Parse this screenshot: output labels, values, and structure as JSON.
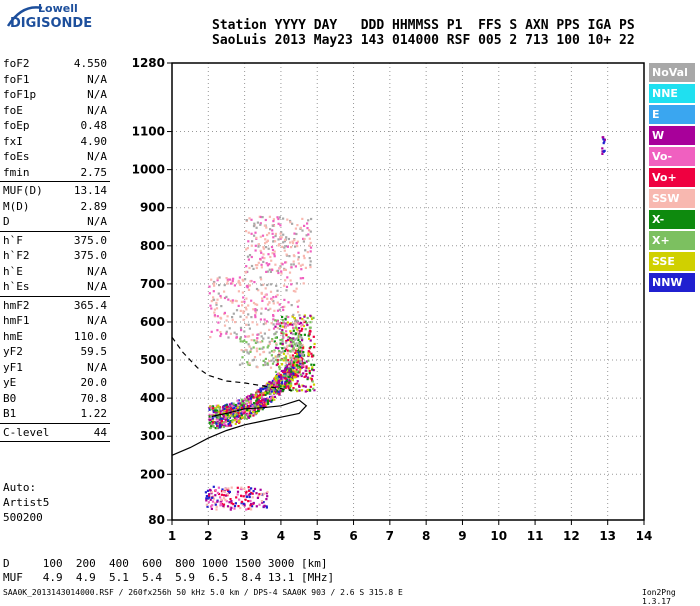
{
  "logo": {
    "line1": "Lowell",
    "line2": "DIGISONDE"
  },
  "header": {
    "line1": "Station YYYY DAY   DDD HHMMSS P1  FFS S AXN PPS IGA PS",
    "line2": "SaoLuis 2013 May23 143 014000 RSF 005 2 713 100 10+ 22"
  },
  "params": [
    {
      "k": "foF2",
      "v": "4.550"
    },
    {
      "k": "foF1",
      "v": "N/A"
    },
    {
      "k": "foF1p",
      "v": "N/A"
    },
    {
      "k": "foE",
      "v": "N/A"
    },
    {
      "k": "foEp",
      "v": "0.48"
    },
    {
      "k": "fxI",
      "v": "4.90"
    },
    {
      "k": "foEs",
      "v": "N/A"
    },
    {
      "k": "fmin",
      "v": "2.75"
    },
    {
      "sep": true
    },
    {
      "k": "MUF(D)",
      "v": "13.14"
    },
    {
      "k": "M(D)",
      "v": "2.89"
    },
    {
      "k": "D",
      "v": "N/A"
    },
    {
      "sep": true
    },
    {
      "k": "h`F",
      "v": "375.0"
    },
    {
      "k": "h`F2",
      "v": "375.0"
    },
    {
      "k": "h`E",
      "v": "N/A"
    },
    {
      "k": "h`Es",
      "v": "N/A"
    },
    {
      "sep": true
    },
    {
      "k": "hmF2",
      "v": "365.4"
    },
    {
      "k": "hmF1",
      "v": "N/A"
    },
    {
      "k": "hmE",
      "v": "110.0"
    },
    {
      "k": "yF2",
      "v": "59.5"
    },
    {
      "k": "yF1",
      "v": "N/A"
    },
    {
      "k": "yE",
      "v": "20.0"
    },
    {
      "k": "B0",
      "v": "70.8"
    },
    {
      "k": "B1",
      "v": "1.22"
    },
    {
      "sep": true
    },
    {
      "k": "C-level",
      "v": "44"
    },
    {
      "sep": true
    }
  ],
  "auto": {
    "l1": "Auto:",
    "l2": "Artist5",
    "l3": "500200"
  },
  "legend": [
    {
      "name": "NoVal",
      "color": "#a8a8a8"
    },
    {
      "name": "NNE",
      "color": "#1fe0f0"
    },
    {
      "name": "E",
      "color": "#3aa6f0"
    },
    {
      "name": "W",
      "color": "#a8009a"
    },
    {
      "name": "Vo-",
      "color": "#f060c0"
    },
    {
      "name": "Vo+",
      "color": "#ef0040"
    },
    {
      "name": "SSW",
      "color": "#f8b8b0"
    },
    {
      "name": "X-",
      "color": "#0e8a0e"
    },
    {
      "name": "X+",
      "color": "#7cc060"
    },
    {
      "name": "SSE",
      "color": "#d0d000"
    },
    {
      "name": "NNW",
      "color": "#2020d0"
    }
  ],
  "muf": {
    "line1": "D     100  200  400  600  800 1000 1500 3000 [km]",
    "line2": "MUF   4.9  4.9  5.1  5.4  5.9  6.5  8.4 13.1 [MHz]"
  },
  "footer": "SAA0K_2013143014000.RSF / 260fx256h 50 kHz 5.0 km / DPS-4 SAA0K 903 / 2.6 S 315.8 E",
  "version": "Ion2Png 1.3.17",
  "chart_data": {
    "type": "scatter",
    "xlim": [
      1,
      14
    ],
    "ylim": [
      80,
      1280
    ],
    "xticks": [
      1,
      2,
      3,
      4,
      5,
      6,
      7,
      8,
      9,
      10,
      11,
      12,
      13,
      14
    ],
    "yticks": [
      80,
      200,
      300,
      400,
      500,
      600,
      700,
      800,
      900,
      1000,
      1100,
      1280
    ],
    "seed": 7,
    "clusters": [
      {
        "x": [
          2.0,
          4.6
        ],
        "y": [
          340,
          520
        ],
        "n": 900,
        "dist": "trace",
        "colors": [
          "Vo+",
          "Vo-",
          "W",
          "X-",
          "X+",
          "SSE",
          "NNW"
        ]
      },
      {
        "x": [
          3.8,
          4.9
        ],
        "y": [
          420,
          620
        ],
        "n": 300,
        "colors": [
          "X-",
          "X+",
          "SSE",
          "Vo+",
          "W"
        ]
      },
      {
        "x": [
          2.0,
          4.6
        ],
        "y": [
          560,
          720
        ],
        "n": 260,
        "colors": [
          "SSW",
          "SSW",
          "Vo-",
          "NoVal"
        ]
      },
      {
        "x": [
          3.0,
          4.8
        ],
        "y": [
          730,
          880
        ],
        "n": 220,
        "colors": [
          "SSW",
          "SSW",
          "Vo-",
          "NoVal"
        ]
      },
      {
        "x": [
          2.8,
          4.6
        ],
        "y": [
          480,
          560
        ],
        "n": 120,
        "colors": [
          "SSW",
          "NoVal",
          "X+"
        ]
      },
      {
        "x": [
          1.9,
          3.6
        ],
        "y": [
          110,
          170
        ],
        "n": 160,
        "colors": [
          "W",
          "Vo-",
          "NNW",
          "SSW",
          "Vo+"
        ]
      },
      {
        "x": [
          12.8,
          12.9
        ],
        "y": [
          1040,
          1090
        ],
        "n": 12,
        "colors": [
          "NNW",
          "W"
        ]
      }
    ],
    "traces": [
      {
        "name": "solid",
        "style": "solid",
        "x": [
          1.0,
          1.5,
          2.0,
          2.5,
          3.0,
          3.5,
          4.0,
          4.5,
          4.7,
          4.5,
          4.0,
          3.5,
          3.0,
          2.5,
          2.1
        ],
        "y": [
          250,
          270,
          295,
          315,
          330,
          340,
          350,
          360,
          380,
          395,
          380,
          375,
          372,
          360,
          352
        ]
      },
      {
        "name": "dashed",
        "style": "dashed",
        "x": [
          1.0,
          1.3,
          1.7,
          2.0,
          2.5,
          3.0,
          3.5,
          4.0,
          4.3
        ],
        "y": [
          560,
          520,
          480,
          460,
          445,
          440,
          432,
          425,
          420
        ]
      }
    ]
  }
}
